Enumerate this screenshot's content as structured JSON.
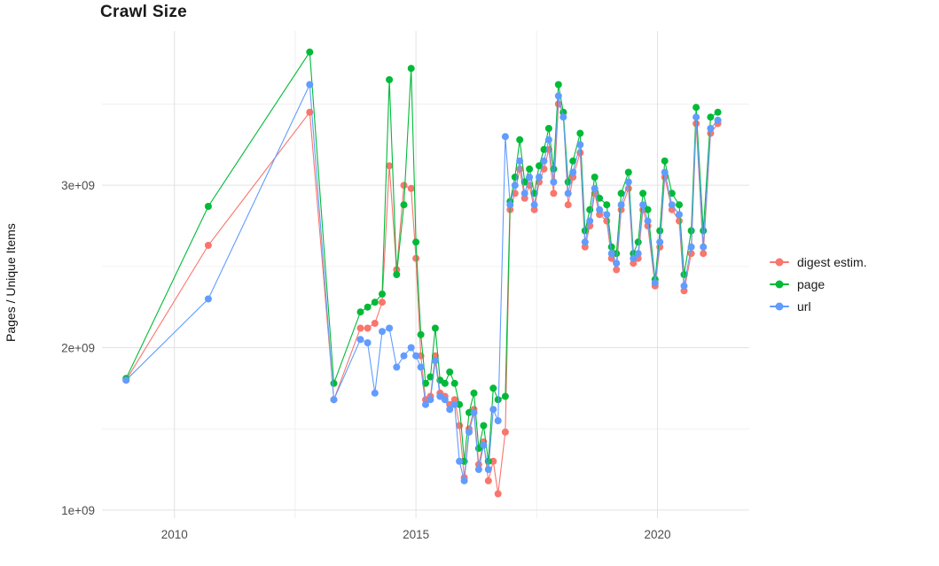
{
  "chart_data": {
    "type": "line",
    "title": "Crawl Size",
    "xlabel": "",
    "ylabel": "Pages / Unique Items",
    "grid": true,
    "legend_position": "right",
    "xlim": [
      2008.5,
      2021.9
    ],
    "ylim_e9": [
      0.95,
      3.95
    ],
    "xticks": [
      2010,
      2015,
      2020
    ],
    "xtick_labels": [
      "2010",
      "2015",
      "2020"
    ],
    "yticks_e9": [
      1,
      2,
      3
    ],
    "ytick_labels": [
      "1e+09",
      "2e+09",
      "3e+09"
    ],
    "minor_xticks": [
      2012.5,
      2017.5
    ],
    "minor_yticks_e9": [
      1.5,
      2.5,
      3.5
    ],
    "x_years": [
      2009.0,
      2010.7,
      2012.8,
      2013.3,
      2013.85,
      2014.0,
      2014.15,
      2014.3,
      2014.45,
      2014.6,
      2014.75,
      2014.9,
      2015.0,
      2015.1,
      2015.2,
      2015.3,
      2015.4,
      2015.5,
      2015.6,
      2015.7,
      2015.8,
      2015.9,
      2016.0,
      2016.1,
      2016.2,
      2016.3,
      2016.4,
      2016.5,
      2016.6,
      2016.7,
      2016.85,
      2016.95,
      2017.05,
      2017.15,
      2017.25,
      2017.35,
      2017.45,
      2017.55,
      2017.65,
      2017.75,
      2017.85,
      2017.95,
      2018.05,
      2018.15,
      2018.25,
      2018.4,
      2018.5,
      2018.6,
      2018.7,
      2018.8,
      2018.95,
      2019.05,
      2019.15,
      2019.25,
      2019.4,
      2019.5,
      2019.6,
      2019.7,
      2019.8,
      2019.95,
      2020.05,
      2020.15,
      2020.3,
      2020.45,
      2020.55,
      2020.7,
      2020.8,
      2020.95,
      2021.1,
      2021.25
    ],
    "series": [
      {
        "name": "digest estim.",
        "color": "#F8766D",
        "values_e9": [
          1.8,
          2.63,
          3.45,
          1.68,
          2.12,
          2.12,
          2.15,
          2.28,
          3.12,
          2.48,
          3.0,
          2.98,
          2.55,
          1.95,
          1.68,
          1.7,
          1.95,
          1.72,
          1.7,
          1.65,
          1.68,
          1.52,
          1.2,
          1.5,
          1.62,
          1.28,
          1.42,
          1.18,
          1.3,
          1.1,
          1.48,
          2.85,
          2.95,
          3.1,
          2.92,
          3.0,
          2.85,
          3.02,
          3.1,
          3.22,
          2.95,
          3.5,
          3.45,
          2.88,
          3.05,
          3.2,
          2.62,
          2.75,
          2.95,
          2.82,
          2.78,
          2.55,
          2.48,
          2.85,
          2.98,
          2.52,
          2.55,
          2.85,
          2.75,
          2.38,
          2.62,
          3.05,
          2.85,
          2.78,
          2.35,
          2.58,
          3.38,
          2.58,
          3.32,
          3.38
        ]
      },
      {
        "name": "page",
        "color": "#00BA38",
        "values_e9": [
          1.81,
          2.87,
          3.82,
          1.78,
          2.22,
          2.25,
          2.28,
          2.33,
          3.65,
          2.45,
          2.88,
          3.72,
          2.65,
          2.08,
          1.78,
          1.82,
          2.12,
          1.8,
          1.78,
          1.85,
          1.78,
          1.65,
          1.3,
          1.6,
          1.72,
          1.38,
          1.52,
          1.3,
          1.75,
          1.68,
          1.7,
          2.9,
          3.05,
          3.28,
          3.02,
          3.1,
          2.95,
          3.12,
          3.22,
          3.35,
          3.1,
          3.62,
          3.45,
          3.02,
          3.15,
          3.32,
          2.72,
          2.85,
          3.05,
          2.92,
          2.88,
          2.62,
          2.58,
          2.95,
          3.08,
          2.58,
          2.65,
          2.95,
          2.85,
          2.42,
          2.72,
          3.15,
          2.95,
          2.88,
          2.45,
          2.72,
          3.48,
          2.72,
          3.42,
          3.45
        ]
      },
      {
        "name": "url",
        "color": "#619CFF",
        "values_e9": [
          1.8,
          2.3,
          3.62,
          1.68,
          2.05,
          2.03,
          1.72,
          2.1,
          2.12,
          1.88,
          1.95,
          2.0,
          1.95,
          1.88,
          1.65,
          1.68,
          1.92,
          1.7,
          1.68,
          1.62,
          1.65,
          1.3,
          1.18,
          1.48,
          1.6,
          1.25,
          1.4,
          1.25,
          1.62,
          1.55,
          3.3,
          2.88,
          3.0,
          3.15,
          2.95,
          3.05,
          2.88,
          3.05,
          3.15,
          3.28,
          3.02,
          3.55,
          3.42,
          2.95,
          3.08,
          3.25,
          2.65,
          2.78,
          2.98,
          2.85,
          2.82,
          2.58,
          2.52,
          2.88,
          3.02,
          2.55,
          2.58,
          2.88,
          2.78,
          2.4,
          2.65,
          3.08,
          2.88,
          2.82,
          2.38,
          2.62,
          3.42,
          2.62,
          3.35,
          3.4
        ]
      }
    ],
    "style": {
      "major_grid_color": "#e2e2e2",
      "minor_grid_color": "#f0f0f0",
      "point_radius": 4,
      "line_width": 1.1
    }
  }
}
